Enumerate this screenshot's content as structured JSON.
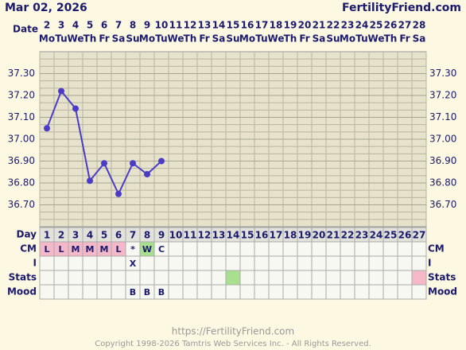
{
  "header": {
    "date": "Mar 02, 2026",
    "site": "FertilityFriend.com"
  },
  "chart_data": {
    "type": "line",
    "x_label": "Date",
    "categories": [
      "2",
      "3",
      "4",
      "5",
      "6",
      "7",
      "8",
      "9",
      "10",
      "11",
      "12",
      "13",
      "14",
      "15",
      "16",
      "17",
      "18",
      "19",
      "20",
      "21",
      "22",
      "23",
      "24",
      "25",
      "26",
      "27",
      "28"
    ],
    "weekdays": [
      "Mo",
      "Tu",
      "We",
      "Th",
      "Fr",
      "Sa",
      "Su",
      "Mo",
      "Tu",
      "We",
      "Th",
      "Fr",
      "Sa",
      "Su",
      "Mo",
      "Tu",
      "We",
      "Th",
      "Fr",
      "Sa",
      "Su",
      "Mo",
      "Tu",
      "We",
      "Th",
      "Fr",
      "Sa"
    ],
    "values": [
      37.05,
      37.22,
      37.14,
      36.81,
      36.89,
      36.75,
      36.89,
      36.84,
      36.9,
      null,
      null,
      null,
      null,
      null,
      null,
      null,
      null,
      null,
      null,
      null,
      null,
      null,
      null,
      null,
      null,
      null,
      null
    ],
    "color": "#4b3cc8",
    "ylim": [
      36.6,
      37.4
    ],
    "yticks": [
      {
        "value": 36.7,
        "label": "36.70"
      },
      {
        "value": 36.8,
        "label": "36.80"
      },
      {
        "value": 36.9,
        "label": "36.90"
      },
      {
        "value": 37.0,
        "label": "37.00"
      },
      {
        "value": 37.1,
        "label": "37.10"
      },
      {
        "value": 37.2,
        "label": "37.20"
      },
      {
        "value": 37.3,
        "label": "37.30"
      }
    ],
    "grid": true
  },
  "table": {
    "rows": [
      {
        "label": "Day",
        "cells": [
          "1",
          "2",
          "3",
          "4",
          "5",
          "6",
          "7",
          "8",
          "9",
          "10",
          "11",
          "12",
          "13",
          "14",
          "15",
          "16",
          "17",
          "18",
          "19",
          "20",
          "21",
          "22",
          "23",
          "24",
          "25",
          "26",
          "27"
        ]
      },
      {
        "label": "CM",
        "cells": [
          "L",
          "L",
          "M",
          "M",
          "M",
          "L",
          "*",
          "W",
          "C",
          null,
          null,
          null,
          null,
          null,
          null,
          null,
          null,
          null,
          null,
          null,
          null,
          null,
          null,
          null,
          null,
          null,
          null
        ],
        "colors": [
          "#f4b8c8",
          "#f4b8c8",
          "#f4b8c8",
          "#f4b8c8",
          "#f4b8c8",
          "#f4b8c8",
          null,
          "#a8e08e",
          null,
          null,
          null,
          null,
          null,
          null,
          null,
          null,
          null,
          null,
          null,
          null,
          null,
          null,
          null,
          null,
          null,
          null,
          null
        ]
      },
      {
        "label": "I",
        "cells": [
          null,
          null,
          null,
          null,
          null,
          null,
          "X",
          null,
          null,
          null,
          null,
          null,
          null,
          null,
          null,
          null,
          null,
          null,
          null,
          null,
          null,
          null,
          null,
          null,
          null,
          null,
          null
        ]
      },
      {
        "label": "Stats",
        "cells": [
          null,
          null,
          null,
          null,
          null,
          null,
          null,
          null,
          null,
          null,
          null,
          null,
          null,
          null,
          null,
          null,
          null,
          null,
          null,
          null,
          null,
          null,
          null,
          null,
          null,
          null,
          null
        ],
        "colors": [
          null,
          null,
          null,
          null,
          null,
          null,
          null,
          null,
          null,
          null,
          null,
          null,
          null,
          "#a8e08e",
          null,
          null,
          null,
          null,
          null,
          null,
          null,
          null,
          null,
          null,
          null,
          null,
          "#f4b8c8"
        ]
      },
      {
        "label": "Mood",
        "cells": [
          null,
          null,
          null,
          null,
          null,
          null,
          "B",
          "B",
          "B",
          null,
          null,
          null,
          null,
          null,
          null,
          null,
          null,
          null,
          null,
          null,
          null,
          null,
          null,
          null,
          null,
          null,
          null
        ]
      }
    ]
  },
  "footer": {
    "url": "https://FertilityFriend.com",
    "copyright": "Copyright 1998-2026 Tamtris Web Services Inc. - All Rights Reserved."
  }
}
